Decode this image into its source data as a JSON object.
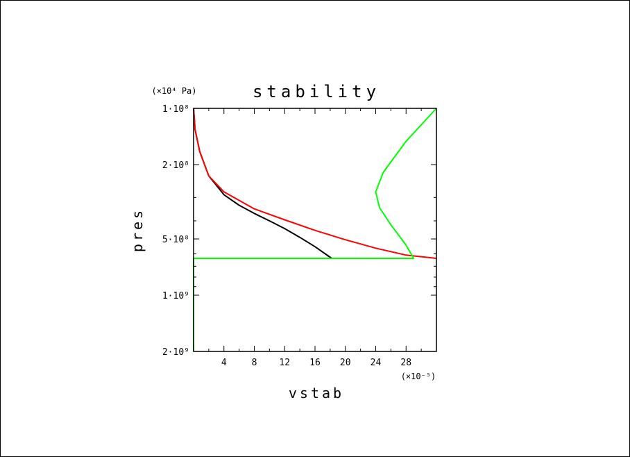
{
  "chart_data": {
    "type": "line",
    "title": "stability",
    "xlabel": "vstab",
    "ylabel": "pres",
    "x_multiplier_label": "(×10⁻⁵)",
    "y_unit_label": "(×10⁴ Pa)",
    "xlim": [
      0,
      32
    ],
    "ylim_pres": [
      100000000.0,
      2000000000.0
    ],
    "y_scale": "log",
    "y_reversed": true,
    "x_ticks": [
      4,
      8,
      12,
      16,
      20,
      24,
      28
    ],
    "x_tick_labels": [
      "4",
      "8",
      "12",
      "16",
      "20",
      "24",
      "28"
    ],
    "y_ticks": [
      100000000.0,
      200000000.0,
      500000000.0,
      1000000000.0,
      2000000000.0
    ],
    "y_tick_labels": [
      "1·10⁸",
      "2·10⁸",
      "5·10⁸",
      "1·10⁹",
      "2·10⁹"
    ],
    "grid": false,
    "series": [
      {
        "color": "#000000",
        "points": [
          [
            0,
            100000000.0
          ],
          [
            0.2,
            130000000.0
          ],
          [
            0.8,
            170000000.0
          ],
          [
            2,
            230000000.0
          ],
          [
            4,
            290000000.0
          ],
          [
            6,
            330000000.0
          ],
          [
            8,
            365000000.0
          ],
          [
            10,
            400000000.0
          ],
          [
            12,
            440000000.0
          ],
          [
            14,
            490000000.0
          ],
          [
            16,
            550000000.0
          ],
          [
            18.2,
            635000000.0
          ]
        ]
      },
      {
        "color": "#ff0000",
        "points": [
          [
            0,
            100000000.0
          ],
          [
            0.2,
            130000000.0
          ],
          [
            0.8,
            170000000.0
          ],
          [
            2,
            230000000.0
          ],
          [
            4,
            280000000.0
          ],
          [
            8,
            345000000.0
          ],
          [
            12,
            395000000.0
          ],
          [
            16,
            450000000.0
          ],
          [
            20,
            505000000.0
          ],
          [
            24,
            560000000.0
          ],
          [
            28,
            610000000.0
          ],
          [
            32,
            635000000.0
          ]
        ]
      },
      {
        "color": "#00ff00",
        "points": [
          [
            32,
            100000000.0
          ],
          [
            28,
            150000000.0
          ],
          [
            25,
            220000000.0
          ],
          [
            24,
            280000000.0
          ],
          [
            24.5,
            340000000.0
          ],
          [
            26,
            420000000.0
          ],
          [
            28,
            540000000.0
          ],
          [
            29,
            635000000.0
          ],
          [
            0,
            635000000.0
          ],
          [
            0,
            2000000000.0
          ]
        ]
      }
    ]
  }
}
